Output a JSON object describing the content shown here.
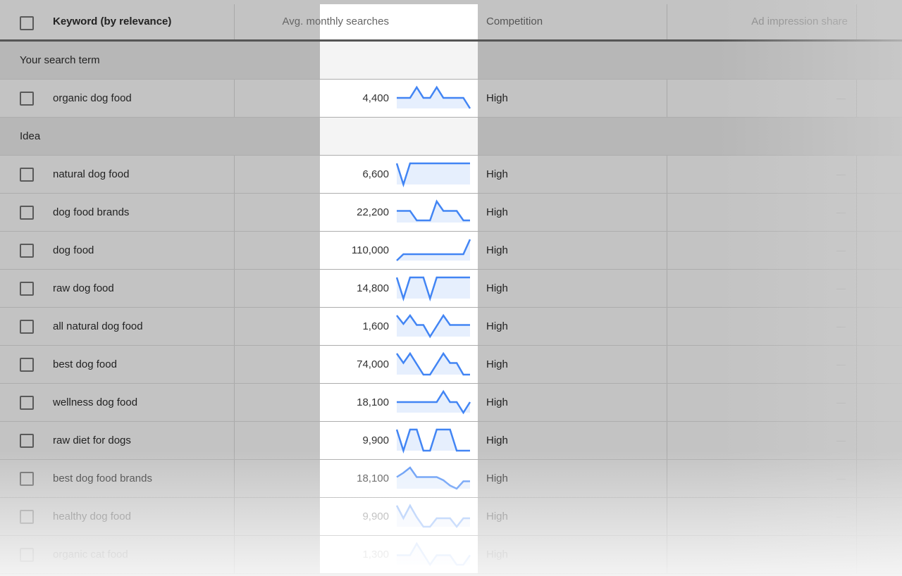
{
  "header": {
    "keyword": "Keyword (by relevance)",
    "avg": "Avg. monthly searches",
    "competition": "Competition",
    "ad_share": "Ad impression share"
  },
  "groups": {
    "search_term": "Your search term",
    "idea": "Idea"
  },
  "empty_value": "—",
  "accent": "#4285f4",
  "search_term_row": {
    "keyword": "organic dog food",
    "searches": "4,400",
    "competition": "High",
    "trend": [
      0.5,
      0.5,
      0.5,
      1,
      0.5,
      0.5,
      1,
      0.5,
      0.5,
      0.5,
      0.5,
      0
    ]
  },
  "ideas": [
    {
      "keyword": "natural dog food",
      "searches": "6,600",
      "competition": "High",
      "trend": [
        1,
        0,
        1,
        1,
        1,
        1,
        1,
        1,
        1,
        1,
        1,
        1
      ]
    },
    {
      "keyword": "dog food brands",
      "searches": "22,200",
      "competition": "High",
      "trend": [
        0.55,
        0.55,
        0.55,
        0.1,
        0.1,
        0.1,
        1,
        0.55,
        0.55,
        0.55,
        0.1,
        0.1
      ]
    },
    {
      "keyword": "dog food",
      "searches": "110,000",
      "competition": "High",
      "trend": [
        0,
        0.3,
        0.3,
        0.3,
        0.3,
        0.3,
        0.3,
        0.3,
        0.3,
        0.3,
        0.3,
        1
      ]
    },
    {
      "keyword": "raw dog food",
      "searches": "14,800",
      "competition": "High",
      "trend": [
        1,
        0,
        1,
        1,
        1,
        0,
        1,
        1,
        1,
        1,
        1,
        1
      ]
    },
    {
      "keyword": "all natural dog food",
      "searches": "1,600",
      "competition": "High",
      "trend": [
        1,
        0.6,
        1,
        0.55,
        0.55,
        0,
        0.5,
        1,
        0.55,
        0.55,
        0.55,
        0.55
      ]
    },
    {
      "keyword": "best dog food",
      "searches": "74,000",
      "competition": "High",
      "trend": [
        1,
        0.55,
        1,
        0.5,
        0,
        0,
        0.5,
        1,
        0.55,
        0.55,
        0,
        0
      ]
    },
    {
      "keyword": "wellness dog food",
      "searches": "18,100",
      "competition": "High",
      "trend": [
        0.5,
        0.5,
        0.5,
        0.5,
        0.5,
        0.5,
        0.5,
        1,
        0.5,
        0.5,
        0,
        0.5
      ]
    },
    {
      "keyword": "raw diet for dogs",
      "searches": "9,900",
      "competition": "High",
      "trend": [
        1,
        0,
        1,
        1,
        0,
        0,
        1,
        1,
        1,
        0,
        0,
        0
      ]
    },
    {
      "keyword": "best dog food brands",
      "searches": "18,100",
      "competition": "High",
      "trend": [
        0.55,
        0.75,
        1,
        0.55,
        0.55,
        0.55,
        0.55,
        0.4,
        0.15,
        0,
        0.35,
        0.35
      ]
    },
    {
      "keyword": "healthy dog food",
      "searches": "9,900",
      "competition": "High",
      "trend": [
        1,
        0.4,
        1,
        0.45,
        0,
        0,
        0.4,
        0.4,
        0.4,
        0,
        0.4,
        0.4
      ]
    },
    {
      "keyword": "organic cat food",
      "searches": "1,300",
      "competition": "High",
      "trend": [
        0.45,
        0.45,
        0.45,
        1,
        0.5,
        0,
        0.45,
        0.45,
        0.45,
        0,
        0,
        0.45
      ]
    }
  ]
}
